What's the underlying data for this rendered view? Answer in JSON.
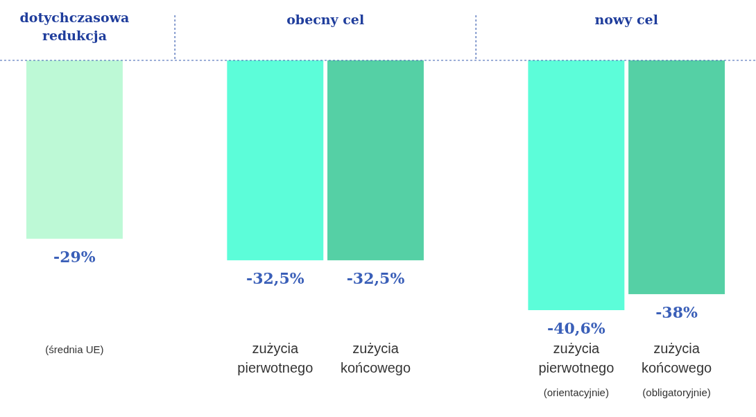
{
  "chart_data": {
    "type": "bar",
    "categories": [
      "(średnia UE)",
      null,
      "zużycia pierwotnego",
      "zużycia końcowego",
      null,
      "zużycia pierwotnego (orientacyjnie)",
      "zużycia końcowego (obligatoryjnie)"
    ],
    "values": [
      -29,
      null,
      -32.5,
      -32.5,
      null,
      -40.6,
      -38
    ],
    "colors": [
      "#bdf9d6",
      null,
      "#5cfdd9",
      "#55d0a5",
      null,
      "#5cfdd9",
      "#55d0a5"
    ],
    "value_labels": [
      "-29%",
      null,
      "-32,5%",
      "-32,5%",
      null,
      "-40,6%",
      "-38%"
    ],
    "annotations": [
      "dotychczasowa redukcja",
      "obecny cel",
      "nowy cel"
    ]
  }
}
